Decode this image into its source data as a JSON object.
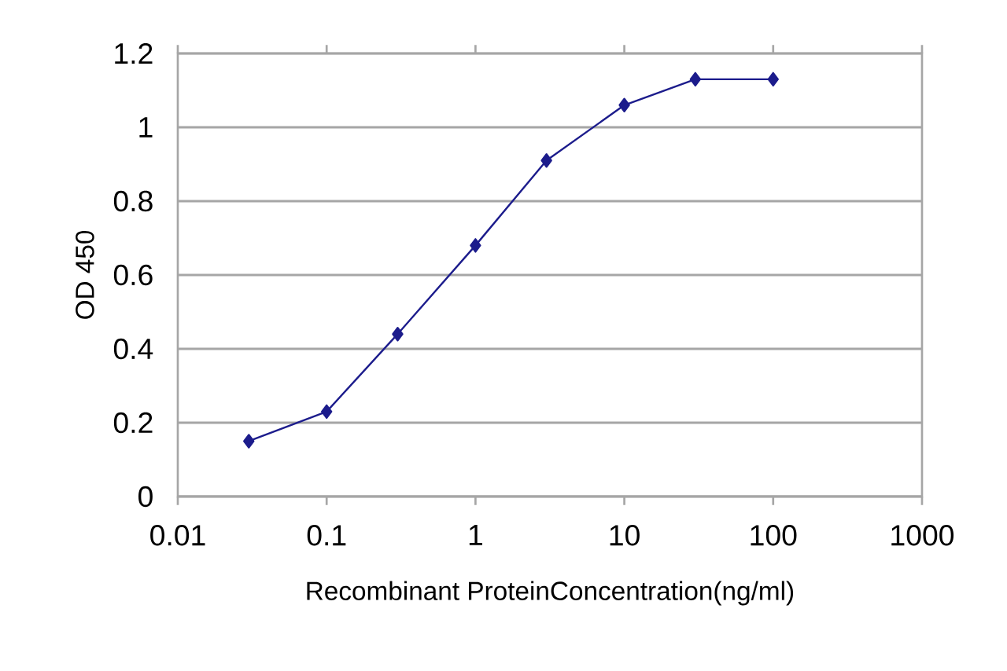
{
  "chart_data": {
    "type": "line",
    "xlabel": "Recombinant ProteinConcentration(ng/ml)",
    "ylabel": "OD 450",
    "x": [
      0.03,
      0.1,
      0.3,
      1,
      3,
      10,
      30,
      100
    ],
    "series": [
      {
        "color": "#1c1c8c",
        "values": [
          0.15,
          0.23,
          0.44,
          0.68,
          0.91,
          1.06,
          1.13,
          1.13
        ]
      }
    ],
    "log": "x",
    "xlim": [
      0.01,
      1000
    ],
    "xticks": [
      0.01,
      0.1,
      1,
      10,
      100,
      1000
    ],
    "ylim": [
      0,
      1.2
    ],
    "yticks": [
      0,
      0.2,
      0.4,
      0.6,
      0.8,
      1,
      1.2
    ],
    "grid": "y",
    "marker": "diamond",
    "line_style": "solid"
  }
}
